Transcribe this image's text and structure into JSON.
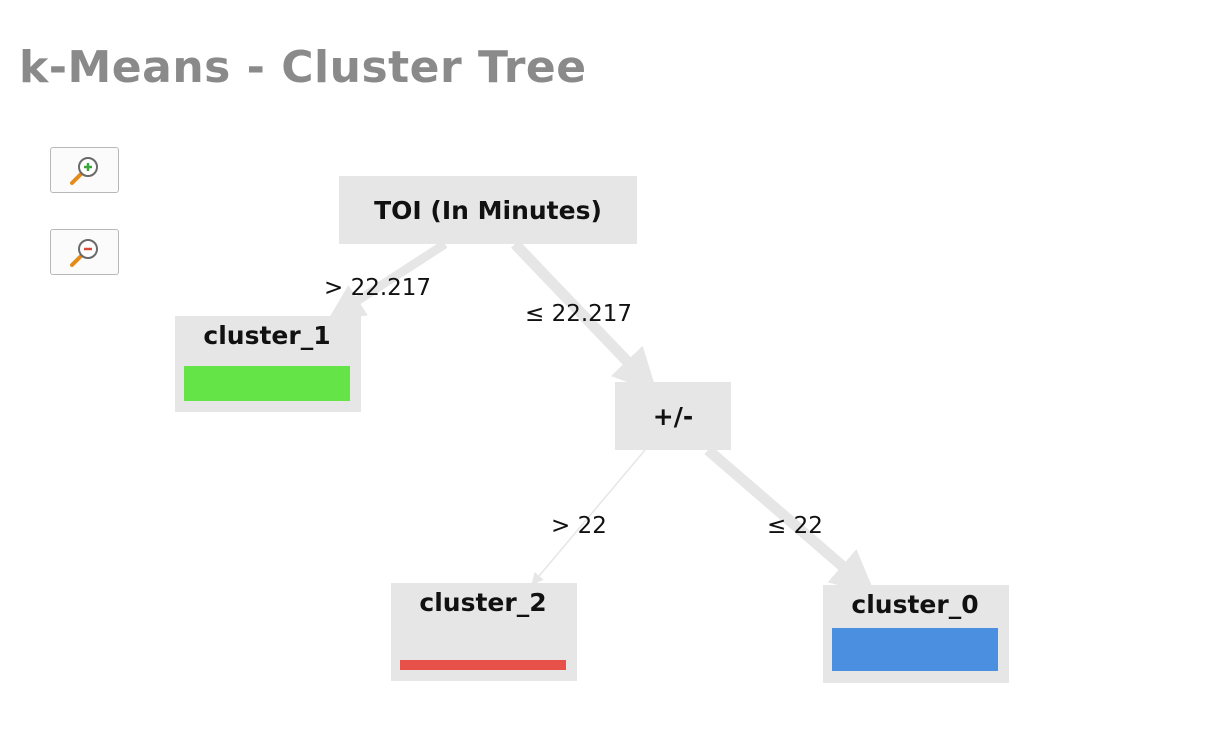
{
  "title": "k-Means - Cluster Tree",
  "controls": {
    "zoom_in_icon": "zoom-in-magnifier",
    "zoom_out_icon": "zoom-out-magnifier"
  },
  "tree": {
    "nodes": {
      "root": {
        "label": "TOI (In Minutes)"
      },
      "split": {
        "label": "+/-"
      },
      "cluster_1": {
        "label": "cluster_1",
        "color": "#64e447"
      },
      "cluster_2": {
        "label": "cluster_2",
        "color": "#e8514a"
      },
      "cluster_0": {
        "label": "cluster_0",
        "color": "#4b8fe0"
      }
    },
    "edges": {
      "root_to_cluster_1": {
        "label": "> 22.217"
      },
      "root_to_split": {
        "label": "≤ 22.217"
      },
      "split_to_cluster_2": {
        "label": "> 22"
      },
      "split_to_cluster_0": {
        "label": "≤ 22"
      }
    }
  },
  "colors": {
    "title": "#8a8a8a",
    "node_fill": "#e6e6e6",
    "edge": "#e6e6e6"
  }
}
